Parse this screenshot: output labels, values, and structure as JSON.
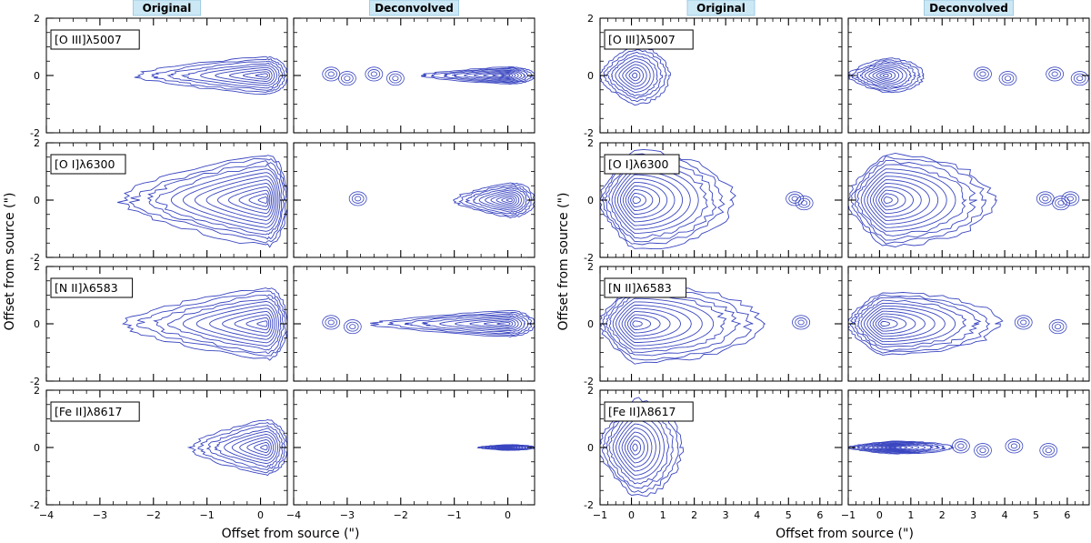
{
  "chart_data": {
    "type": "contour",
    "figure": "Position-velocity style contour maps of forbidden emission lines: original vs deconvolved",
    "colors": {
      "contour": "#3a46c0",
      "title_bg": "#cde8f5",
      "title_border": "#8fc3de",
      "axis": "#000000"
    },
    "groups": [
      {
        "id": "left",
        "x_range": [
          -4,
          0.5
        ],
        "y_range": [
          -2,
          2
        ],
        "x_ticks": [
          -4,
          -3,
          -2,
          -1,
          0
        ],
        "y_ticks": [
          -2,
          0,
          2
        ],
        "xlabel": "Offset from source (\")",
        "ylabel": "Offset from source (\")",
        "columns": [
          "Original",
          "Deconvolved"
        ],
        "source_x": 0
      },
      {
        "id": "right",
        "x_range": [
          -1,
          6.7
        ],
        "y_range": [
          -2,
          2
        ],
        "x_ticks": [
          -1,
          0,
          1,
          2,
          3,
          4,
          5,
          6
        ],
        "y_ticks": [
          -2,
          0,
          2
        ],
        "xlabel": "Offset from source (\")",
        "ylabel": "Offset from source (\")",
        "columns": [
          "Original",
          "Deconvolved"
        ],
        "source_x": 0
      }
    ],
    "rows": [
      {
        "line": "[O III]λ5007",
        "left_original": {
          "center_x": 0.1,
          "extent_x": [
            -2.3,
            0.5
          ],
          "half_height": 0.65,
          "levels": 9
        },
        "left_deconvolved": {
          "center_x": 0.0,
          "extent_x": [
            -1.6,
            0.5
          ],
          "half_height": 0.3,
          "levels": 9,
          "knots_x": [
            -3.3,
            -3.0,
            -2.5,
            -2.1
          ]
        },
        "right_original": {
          "center_x": 0.1,
          "extent_x": [
            -1.0,
            1.2
          ],
          "half_height": 1.0,
          "levels": 10
        },
        "right_deconvolved": {
          "center_x": 0.2,
          "extent_x": [
            -1.0,
            1.4
          ],
          "half_height": 0.6,
          "levels": 10,
          "knots_x": [
            3.3,
            4.1,
            5.6,
            6.4
          ]
        }
      },
      {
        "line": "[O I]λ6300",
        "left_original": {
          "center_x": 0.1,
          "extent_x": [
            -2.6,
            0.5
          ],
          "half_height": 1.6,
          "levels": 13
        },
        "left_deconvolved": {
          "center_x": 0.05,
          "extent_x": [
            -1.0,
            0.5
          ],
          "half_height": 0.6,
          "levels": 10,
          "knots_x": [
            -2.8
          ]
        },
        "right_original": {
          "center_x": 0.1,
          "extent_x": [
            -1.0,
            3.2
          ],
          "half_height": 1.7,
          "levels": 13,
          "knots_x": [
            5.2,
            5.5
          ]
        },
        "right_deconvolved": {
          "center_x": 0.2,
          "extent_x": [
            -1.0,
            3.6
          ],
          "half_height": 1.6,
          "levels": 13,
          "knots_x": [
            5.3,
            5.8,
            6.1
          ]
        }
      },
      {
        "line": "[N II]λ6583",
        "left_original": {
          "center_x": 0.1,
          "extent_x": [
            -2.5,
            0.5
          ],
          "half_height": 1.25,
          "levels": 11
        },
        "left_deconvolved": {
          "center_x": 0.0,
          "extent_x": [
            -2.5,
            0.5
          ],
          "half_height": 0.45,
          "levels": 9,
          "knots_x": [
            -3.3,
            -2.9
          ]
        },
        "right_original": {
          "center_x": 0.1,
          "extent_x": [
            -1.0,
            4.1
          ],
          "half_height": 1.35,
          "levels": 12,
          "knots_x": [
            5.4
          ]
        },
        "right_deconvolved": {
          "center_x": 0.1,
          "extent_x": [
            -1.0,
            3.8
          ],
          "half_height": 1.1,
          "levels": 12,
          "knots_x": [
            4.6,
            5.7
          ]
        }
      },
      {
        "line": "[Fe II]λ8617",
        "left_original": {
          "center_x": 0.1,
          "extent_x": [
            -1.3,
            0.5
          ],
          "half_height": 0.95,
          "levels": 10
        },
        "left_deconvolved": {
          "center_x": 0.0,
          "extent_x": [
            -0.55,
            0.5
          ],
          "half_height": 0.1,
          "levels": 10
        },
        "right_original": {
          "center_x": 0.1,
          "extent_x": [
            -1.0,
            1.6
          ],
          "half_height": 1.7,
          "levels": 12
        },
        "right_deconvolved": {
          "center_x": 0.4,
          "extent_x": [
            -1.0,
            2.3
          ],
          "half_height": 0.22,
          "levels": 10,
          "knots_x": [
            2.6,
            3.3,
            4.3,
            5.4
          ]
        }
      }
    ]
  }
}
